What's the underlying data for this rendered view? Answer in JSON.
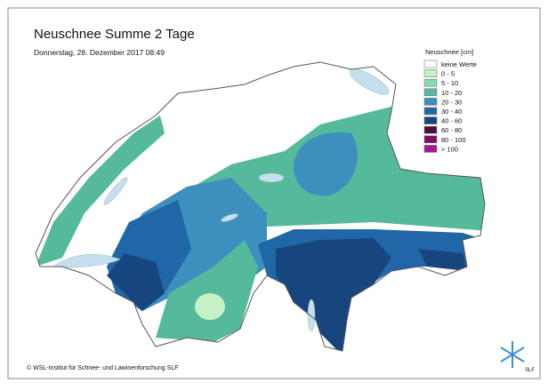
{
  "header": {
    "title": "Neuschnee Summe 2 Tage",
    "subtitle": "Donnerstag, 28. Dezember 2017 08:49"
  },
  "legend": {
    "title": "Neuschnee [cm]",
    "entries": [
      {
        "label": "keine Werte",
        "color": "#ffffff"
      },
      {
        "label": "0 - 5",
        "color": "#c4f2c4"
      },
      {
        "label": "5 - 10",
        "color": "#86dcb0"
      },
      {
        "label": "10 - 20",
        "color": "#55b99c"
      },
      {
        "label": "20 - 30",
        "color": "#3d8fbd"
      },
      {
        "label": "30 - 40",
        "color": "#1f67a6"
      },
      {
        "label": "40 - 60",
        "color": "#17467f"
      },
      {
        "label": "60 - 80",
        "color": "#4d0c3c"
      },
      {
        "label": "80 - 100",
        "color": "#7c0f63"
      },
      {
        "label": "> 100",
        "color": "#a5168f"
      }
    ]
  },
  "footer": {
    "copyright": "© WSL-Institut für Schnee- und Lawinenforschung SLF",
    "logo": "SLF"
  }
}
